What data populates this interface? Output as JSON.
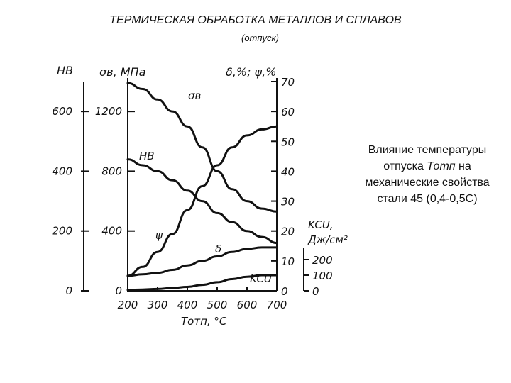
{
  "slide": {
    "title": "ТЕРМИЧЕСКАЯ ОБРАБОТКА МЕТАЛЛОВ И СПЛАВОВ",
    "subtitle": "(отпуск)"
  },
  "caption": {
    "part1": "Влияние температуры отпуска ",
    "emph": "Тотп",
    "part2": " на механические свойства стали 45 (0,4-0,5С)"
  },
  "chart_data": {
    "type": "line",
    "x": [
      200,
      250,
      300,
      350,
      400,
      450,
      500,
      550,
      600,
      650,
      700
    ],
    "xlabel": "Тотп, °C",
    "x_ticks": [
      "200",
      "300",
      "400",
      "500",
      "600",
      "700"
    ],
    "xlim": [
      200,
      700
    ],
    "axes": {
      "hb": {
        "label": "HB",
        "ticks": [
          "0",
          "200",
          "400",
          "600"
        ],
        "range": [
          0,
          700
        ]
      },
      "sigma": {
        "label": "σв, МПа",
        "ticks": [
          "0",
          "400",
          "800",
          "1200"
        ],
        "range": [
          0,
          1400
        ]
      },
      "pct": {
        "label": "δ,%; ψ,%",
        "ticks": [
          "0",
          "10",
          "20",
          "30",
          "40",
          "50",
          "60",
          "70"
        ],
        "range": [
          0,
          70
        ]
      },
      "kcu": {
        "label": "KCU, Дж/см²",
        "ticks": [
          "0",
          "100",
          "200"
        ],
        "range": [
          0,
          250
        ]
      }
    },
    "series": [
      {
        "name": "σв",
        "axis": "sigma",
        "values": [
          1390,
          1350,
          1280,
          1200,
          1100,
          960,
          800,
          680,
          600,
          550,
          530
        ]
      },
      {
        "name": "HB",
        "axis": "hb",
        "values": [
          440,
          420,
          400,
          370,
          335,
          300,
          260,
          230,
          200,
          180,
          160
        ]
      },
      {
        "name": "ψ",
        "axis": "pct",
        "values": [
          5,
          8,
          13,
          19,
          27,
          35,
          42,
          48,
          52,
          54,
          55
        ]
      },
      {
        "name": "δ",
        "axis": "pct",
        "values": [
          5,
          5.5,
          6,
          7,
          8.5,
          10,
          11.5,
          13,
          14,
          14.5,
          14.5
        ]
      },
      {
        "name": "KCU",
        "axis": "kcu",
        "values": [
          5,
          8,
          12,
          18,
          25,
          38,
          55,
          75,
          90,
          100,
          100
        ]
      }
    ]
  }
}
